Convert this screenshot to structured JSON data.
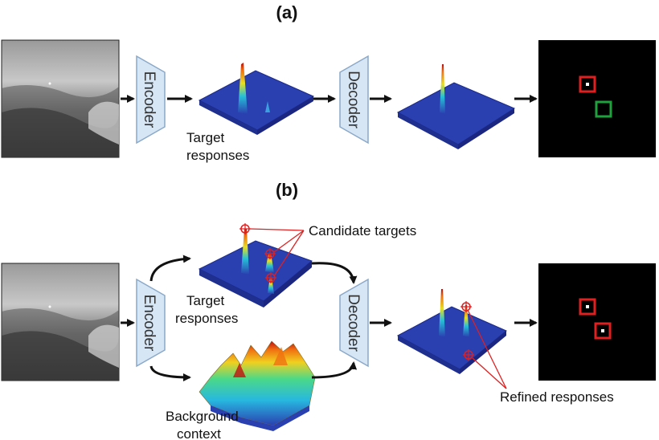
{
  "panels": {
    "a": {
      "label": "(a)",
      "encoder_label": "Encoder",
      "decoder_label": "Decoder",
      "target_responses_line1": "Target",
      "target_responses_line2": "responses"
    },
    "b": {
      "label": "(b)",
      "encoder_label": "Encoder",
      "decoder_label": "Decoder",
      "target_responses_line1": "Target",
      "target_responses_line2": "responses",
      "background_line1": "Background",
      "background_line2": "context",
      "candidate_targets": "Candidate targets",
      "refined_responses": "Refined responses"
    }
  },
  "colors": {
    "module_fill": "#d6e6f5",
    "module_stroke": "#8aa8c8",
    "arrow": "#111111",
    "annotation": "#e02020",
    "box_red": "#e02020",
    "box_green": "#1ea03c",
    "surface_blue": "#2a3fb0",
    "output_bg": "#000000"
  },
  "icons": [
    "infrared-image",
    "response-surface",
    "detection-output",
    "target-marker"
  ]
}
